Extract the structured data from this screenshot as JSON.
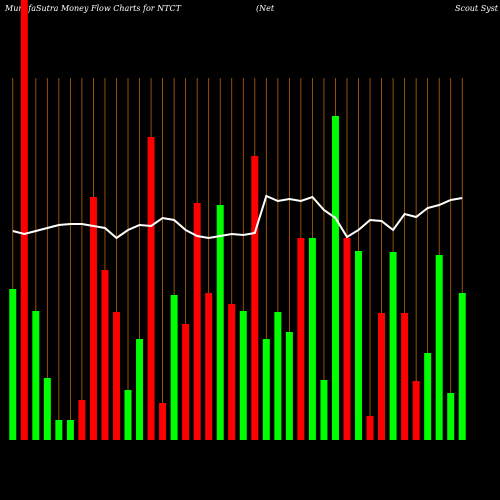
{
  "chart_data": {
    "type": "bar",
    "title_segments": [
      "MunafaSutra  Money Flow  Charts for NTCT",
      "(Net",
      "Scout Syst"
    ],
    "categories": [
      null,
      null,
      null,
      null,
      null,
      null,
      null,
      null,
      null,
      null,
      null,
      null,
      null,
      null,
      null,
      null,
      null,
      null,
      null,
      null,
      null,
      null,
      null,
      null,
      null,
      null,
      null,
      null,
      null,
      null,
      null,
      null,
      null,
      null,
      null,
      null,
      null,
      null,
      null,
      null
    ],
    "values": [
      151,
      440,
      129,
      62,
      20,
      20,
      40,
      243,
      170,
      128,
      50,
      101,
      303,
      37,
      145,
      116,
      237,
      147,
      235,
      136,
      129,
      284,
      101,
      128,
      108,
      202,
      202,
      60,
      324,
      202,
      189,
      24,
      127,
      188,
      127,
      59,
      87,
      185,
      47,
      147
    ],
    "colors": [
      "#00ff00",
      "#ff0000",
      "#00ff00",
      "#00ff00",
      "#00ff00",
      "#00ff00",
      "#ff0000",
      "#ff0000",
      "#ff0000",
      "#ff0000",
      "#00ff00",
      "#00ff00",
      "#ff0000",
      "#ff0000",
      "#00ff00",
      "#ff0000",
      "#ff0000",
      "#ff0000",
      "#00ff00",
      "#ff0000",
      "#00ff00",
      "#ff0000",
      "#00ff00",
      "#00ff00",
      "#00ff00",
      "#ff0000",
      "#00ff00",
      "#00ff00",
      "#00ff00",
      "#ff0000",
      "#00ff00",
      "#ff0000",
      "#ff0000",
      "#00ff00",
      "#ff0000",
      "#ff0000",
      "#00ff00",
      "#00ff00",
      "#00ff00",
      "#00ff00"
    ],
    "line": {
      "color": "#ffffff",
      "values": [
        209,
        206,
        209,
        212,
        215,
        216,
        216,
        214,
        212,
        202,
        210,
        215,
        214,
        222,
        220,
        210,
        204,
        202,
        204,
        206,
        205,
        207,
        244,
        239,
        241,
        239,
        243,
        230,
        222,
        203,
        210,
        220,
        219,
        210,
        226,
        223,
        232,
        235,
        240,
        242
      ]
    },
    "ylim": [
      0,
      440
    ],
    "grid": true,
    "grid_color": "#b8650a"
  }
}
